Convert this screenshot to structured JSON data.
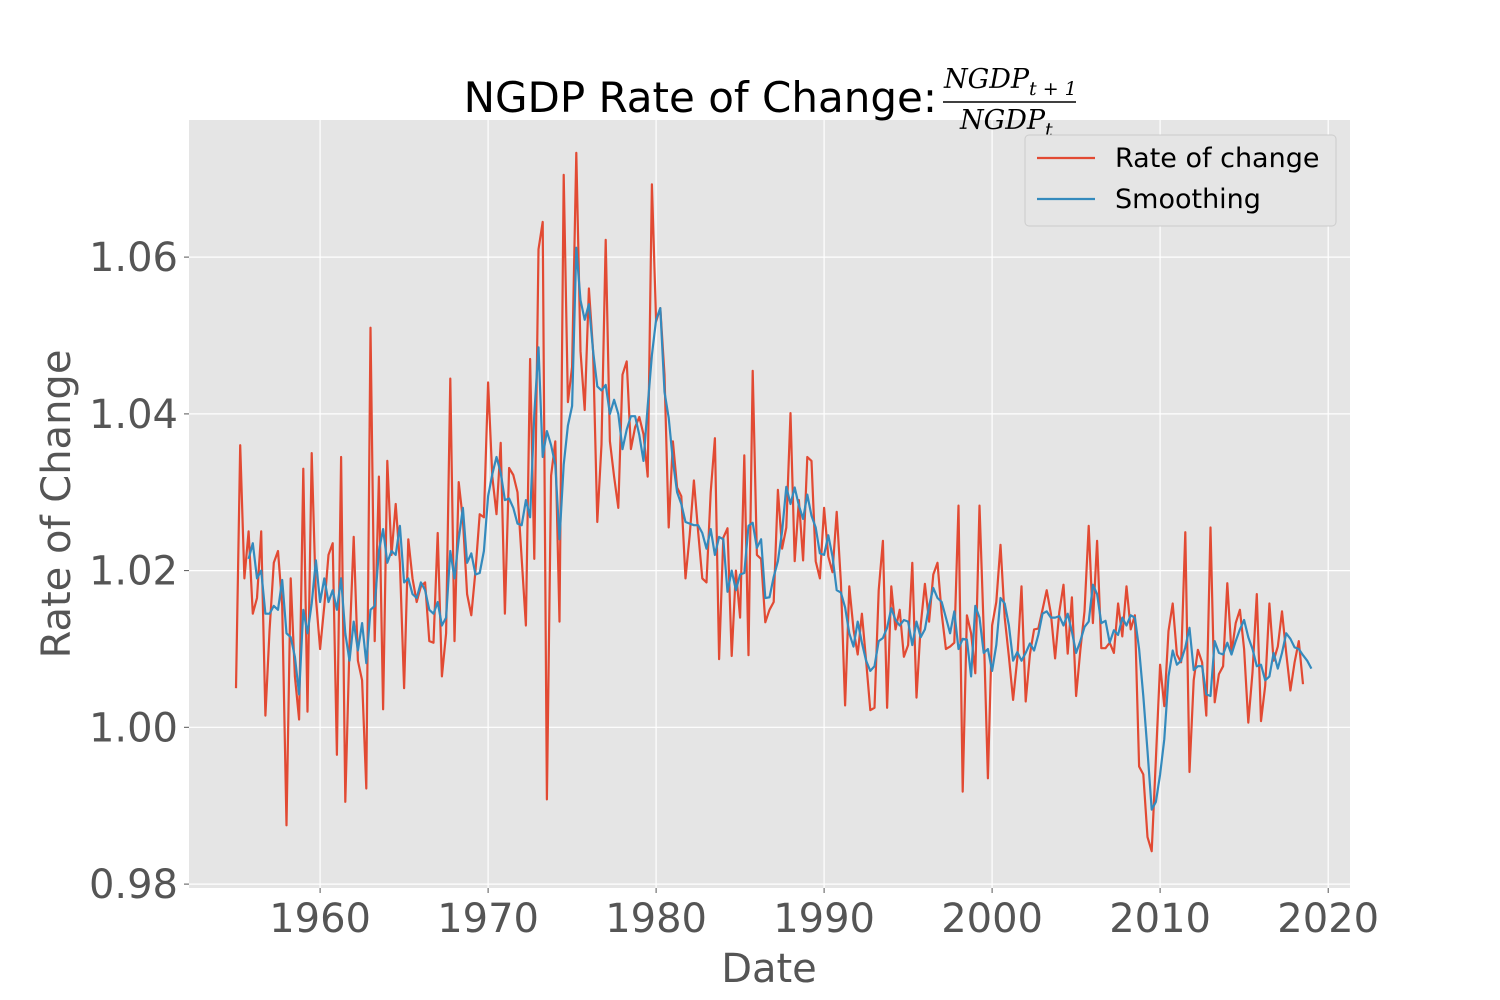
{
  "chart_data": {
    "type": "line",
    "title": "NGDP Rate of Change:",
    "title_fraction": {
      "numerator": {
        "base": "NGDP",
        "subscript": "t + 1"
      },
      "denominator": {
        "base": "NGDP",
        "subscript": "t"
      }
    },
    "xlabel": "Date",
    "ylabel": "Rate of Change",
    "xlim": [
      1952.2,
      2021.3
    ],
    "ylim": [
      0.9795,
      1.0775
    ],
    "x_ticks": [
      1960,
      1970,
      1980,
      1990,
      2000,
      2010,
      2020
    ],
    "x_tick_labels": [
      "1960",
      "1970",
      "1980",
      "1990",
      "2000",
      "2010",
      "2020"
    ],
    "y_ticks": [
      0.98,
      1.0,
      1.02,
      1.04,
      1.06
    ],
    "y_tick_labels": [
      "0.98",
      "1.00",
      "1.02",
      "1.04",
      "1.06"
    ],
    "grid": true,
    "legend_position": "top-right",
    "x": {
      "start": 1955.0,
      "step": 0.25
    },
    "series": [
      {
        "name": "Rate of change",
        "color": "#E24A33",
        "values": [
          1.005,
          1.036,
          1.019,
          1.025,
          1.0145,
          1.0165,
          1.025,
          1.0015,
          1.0125,
          1.021,
          1.0225,
          1.0155,
          0.9875,
          1.019,
          1.0065,
          1.001,
          1.033,
          1.002,
          1.035,
          1.0165,
          1.01,
          1.0155,
          1.022,
          1.0235,
          0.9965,
          1.0345,
          0.9905,
          1.0105,
          1.0243,
          1.0085,
          1.006,
          0.9922,
          1.051,
          1.011,
          1.032,
          1.0023,
          1.034,
          1.022,
          1.0285,
          1.021,
          1.005,
          1.024,
          1.019,
          1.016,
          1.018,
          1.0185,
          1.011,
          1.0108,
          1.0248,
          1.0065,
          1.012,
          1.0445,
          1.011,
          1.0313,
          1.0265,
          1.017,
          1.0143,
          1.02,
          1.0272,
          1.0268,
          1.044,
          1.032,
          1.0272,
          1.0363,
          1.0145,
          1.0331,
          1.0322,
          1.03,
          1.0215,
          1.013,
          1.047,
          1.0215,
          1.061,
          1.0645,
          0.9908,
          1.0321,
          1.0365,
          1.0135,
          1.0705,
          1.0415,
          1.046,
          1.0733,
          1.048,
          1.0405,
          1.056,
          1.048,
          1.0262,
          1.0361,
          1.0622,
          1.0365,
          1.032,
          1.028,
          1.045,
          1.0467,
          1.0355,
          1.0383,
          1.0396,
          1.0374,
          1.032,
          1.0693,
          1.0518,
          1.0535,
          1.045,
          1.0255,
          1.0365,
          1.0306,
          1.0295,
          1.019,
          1.0245,
          1.0315,
          1.025,
          1.019,
          1.0185,
          1.03,
          1.0369,
          1.0087,
          1.0242,
          1.0254,
          1.0091,
          1.02,
          1.014,
          1.0347,
          1.0092,
          1.0455,
          1.022,
          1.0215,
          1.0134,
          1.015,
          1.016,
          1.0303,
          1.0228,
          1.0255,
          1.0401,
          1.0212,
          1.029,
          1.0213,
          1.0345,
          1.034,
          1.0212,
          1.019,
          1.028,
          1.0218,
          1.0198,
          1.0275,
          1.0185,
          1.0028,
          1.018,
          1.0125,
          1.0093,
          1.0145,
          1.0085,
          1.0022,
          1.0025,
          1.0175,
          1.0238,
          1.0025,
          1.018,
          1.0125,
          1.015,
          1.009,
          1.0105,
          1.021,
          1.0038,
          1.013,
          1.0183,
          1.0135,
          1.0195,
          1.021,
          1.0145,
          1.01,
          1.0103,
          1.0108,
          1.0283,
          0.9918,
          1.0143,
          1.012,
          1.0069,
          1.0283,
          1.0125,
          0.9935,
          1.013,
          1.016,
          1.0233,
          1.014,
          1.009,
          1.0035,
          1.0088,
          1.018,
          1.0033,
          1.0093,
          1.0125,
          1.0126,
          1.015,
          1.0175,
          1.0145,
          1.0088,
          1.0147,
          1.0182,
          1.0094,
          1.0166,
          1.004,
          1.0098,
          1.0148,
          1.0257,
          1.0133,
          1.0238,
          1.0101,
          1.0101,
          1.0108,
          1.0095,
          1.0158,
          1.0116,
          1.018,
          1.0125,
          1.0143,
          0.995,
          0.994,
          0.986,
          0.9842,
          0.996,
          1.008,
          1.0027,
          1.0123,
          1.0158,
          1.0093,
          1.0083,
          1.0249,
          0.9943,
          1.006,
          1.0099,
          1.0083,
          1.0015,
          1.0255,
          1.0032,
          1.0068,
          1.0078,
          1.0184,
          1.0095,
          1.0133,
          1.015,
          1.01,
          1.0006,
          1.007,
          1.017,
          1.0008,
          1.0053,
          1.0158,
          1.0085,
          1.0103,
          1.0148,
          1.0095,
          1.0047,
          1.0083,
          1.011,
          1.0055
        ]
      },
      {
        "name": "Smoothing",
        "color": "#348ABD",
        "values": [
          null,
          null,
          null,
          1.0215,
          1.0235,
          1.019,
          1.02,
          1.0145,
          1.0145,
          1.0155,
          1.015,
          1.0188,
          1.012,
          1.0115,
          1.009,
          1.0042,
          1.015,
          1.012,
          1.0158,
          1.0213,
          1.016,
          1.019,
          1.016,
          1.0175,
          1.015,
          1.019,
          1.012,
          1.0085,
          1.0135,
          1.0098,
          1.0133,
          1.0082,
          1.015,
          1.0155,
          1.0225,
          1.0253,
          1.021,
          1.0225,
          1.022,
          1.0257,
          1.0185,
          1.019,
          1.017,
          1.0165,
          1.0185,
          1.0175,
          1.015,
          1.0145,
          1.016,
          1.013,
          1.014,
          1.0225,
          1.019,
          1.024,
          1.028,
          1.021,
          1.0222,
          1.0195,
          1.0197,
          1.0225,
          1.0295,
          1.0323,
          1.0345,
          1.0325,
          1.029,
          1.0292,
          1.028,
          1.026,
          1.0258,
          1.029,
          1.0268,
          1.04,
          1.0485,
          1.0345,
          1.0378,
          1.036,
          1.0335,
          1.024,
          1.0335,
          1.0385,
          1.041,
          1.0612,
          1.0545,
          1.052,
          1.054,
          1.048,
          1.0435,
          1.043,
          1.0437,
          1.04,
          1.0418,
          1.04,
          1.0355,
          1.038,
          1.0397,
          1.0397,
          1.0373,
          1.034,
          1.041,
          1.0475,
          1.052,
          1.0535,
          1.0428,
          1.0395,
          1.034,
          1.03,
          1.0285,
          1.0262,
          1.026,
          1.0258,
          1.0258,
          1.0248,
          1.0228,
          1.0253,
          1.022,
          1.0243,
          1.024,
          1.0173,
          1.02,
          1.0175,
          1.0195,
          1.0197,
          1.0257,
          1.0261,
          1.0229,
          1.024,
          1.0165,
          1.0166,
          1.0192,
          1.0212,
          1.025,
          1.0307,
          1.0285,
          1.0306,
          1.0283,
          1.0266,
          1.0297,
          1.027,
          1.0255,
          1.0222,
          1.022,
          1.0245,
          1.0218,
          1.0175,
          1.0172,
          1.0153,
          1.012,
          1.0103,
          1.0135,
          1.0108,
          1.0085,
          1.0072,
          1.0078,
          1.011,
          1.0114,
          1.0127,
          1.0152,
          1.0137,
          1.013,
          1.0137,
          1.0135,
          1.0105,
          1.0135,
          1.0115,
          1.0125,
          1.0155,
          1.0178,
          1.0165,
          1.016,
          1.014,
          1.012,
          1.0148,
          1.01,
          1.0113,
          1.0112,
          1.0065,
          1.0155,
          1.014,
          1.0095,
          1.01,
          1.0072,
          1.0105,
          1.0165,
          1.0158,
          1.013,
          1.0085,
          1.0096,
          1.0085,
          1.0095,
          1.0107,
          1.0098,
          1.0118,
          1.0145,
          1.0148,
          1.014,
          1.014,
          1.0142,
          1.013,
          1.0145,
          1.0122,
          1.0095,
          1.011,
          1.0128,
          1.0135,
          1.0182,
          1.017,
          1.0133,
          1.0136,
          1.0108,
          1.0124,
          1.0118,
          1.014,
          1.013,
          1.0143,
          1.014,
          1.01,
          1.004,
          0.997,
          0.9895,
          0.9905,
          0.994,
          0.9985,
          1.0065,
          1.0098,
          1.008,
          1.0085,
          1.0102,
          1.0127,
          1.0073,
          1.0078,
          1.0078,
          1.0042,
          1.004,
          1.011,
          1.0095,
          1.0093,
          1.0108,
          1.0093,
          1.011,
          1.0125,
          1.0137,
          1.0115,
          1.01,
          1.0078,
          1.008,
          1.006,
          1.0065,
          1.0095,
          1.0075,
          1.0095,
          1.012,
          1.0113,
          1.0102,
          1.01,
          1.0092,
          1.0085,
          1.0075
        ]
      }
    ]
  }
}
